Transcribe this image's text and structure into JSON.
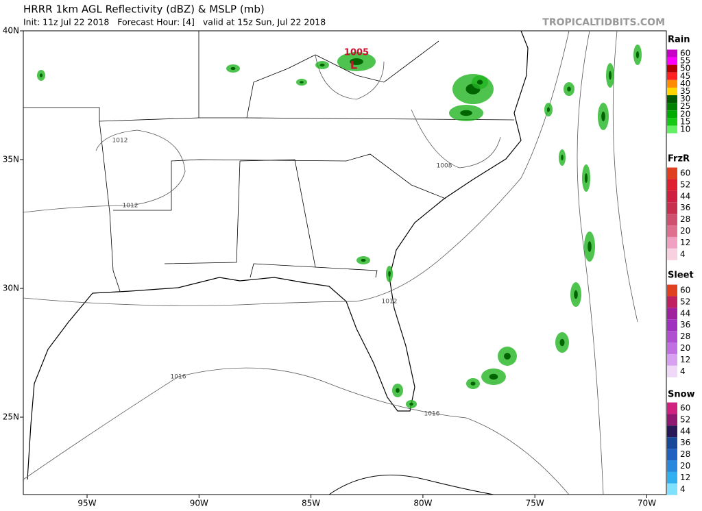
{
  "header": {
    "title": "HRRR 1km AGL Reflectivity (dBZ) & MSLP (mb)",
    "subtitle": "Init: 11z Jul 22 2018   Forecast Hour: [4]   valid at 15z Sun, Jul 22 2018",
    "site": "TROPICALTIDBITS.COM"
  },
  "axes": {
    "lon_labels": [
      "95W",
      "90W",
      "85W",
      "80W",
      "75W",
      "70W"
    ],
    "lat_labels": [
      "40N",
      "35N",
      "30N",
      "25N"
    ]
  },
  "contour_labels": [
    "1012",
    "1012",
    "1008",
    "1005",
    "1012",
    "1016",
    "1016"
  ],
  "pressure_center": "L",
  "legends": [
    {
      "title": "Rain",
      "levels": [
        "60",
        "55",
        "50",
        "45",
        "40",
        "35",
        "30",
        "25",
        "20",
        "15",
        "10"
      ],
      "colors": [
        "#c800c8",
        "#ff00ff",
        "#b40000",
        "#ff2020",
        "#ff8c00",
        "#ffd700",
        "#005a00",
        "#008200",
        "#00aa00",
        "#14c814",
        "#64f064"
      ]
    },
    {
      "title": "FrzR",
      "levels": [
        "60",
        "52",
        "44",
        "36",
        "28",
        "20",
        "12",
        "4"
      ],
      "colors": [
        "#e04020",
        "#e02030",
        "#d02040",
        "#c83050",
        "#d05070",
        "#e07090",
        "#f0a0c0",
        "#f8d0e0"
      ]
    },
    {
      "title": "Sleet",
      "levels": [
        "60",
        "52",
        "44",
        "36",
        "28",
        "20",
        "12",
        "4"
      ],
      "colors": [
        "#e04020",
        "#c02060",
        "#a020a0",
        "#a030c0",
        "#b050d0",
        "#c070e0",
        "#d8a0f0",
        "#f0d8f8"
      ]
    },
    {
      "title": "Snow",
      "levels": [
        "60",
        "52",
        "44",
        "36",
        "28",
        "20",
        "12",
        "4"
      ],
      "colors": [
        "#d02080",
        "#901870",
        "#281858",
        "#184898",
        "#2060c0",
        "#2888e0",
        "#30b0f0",
        "#80e0ff"
      ]
    }
  ]
}
